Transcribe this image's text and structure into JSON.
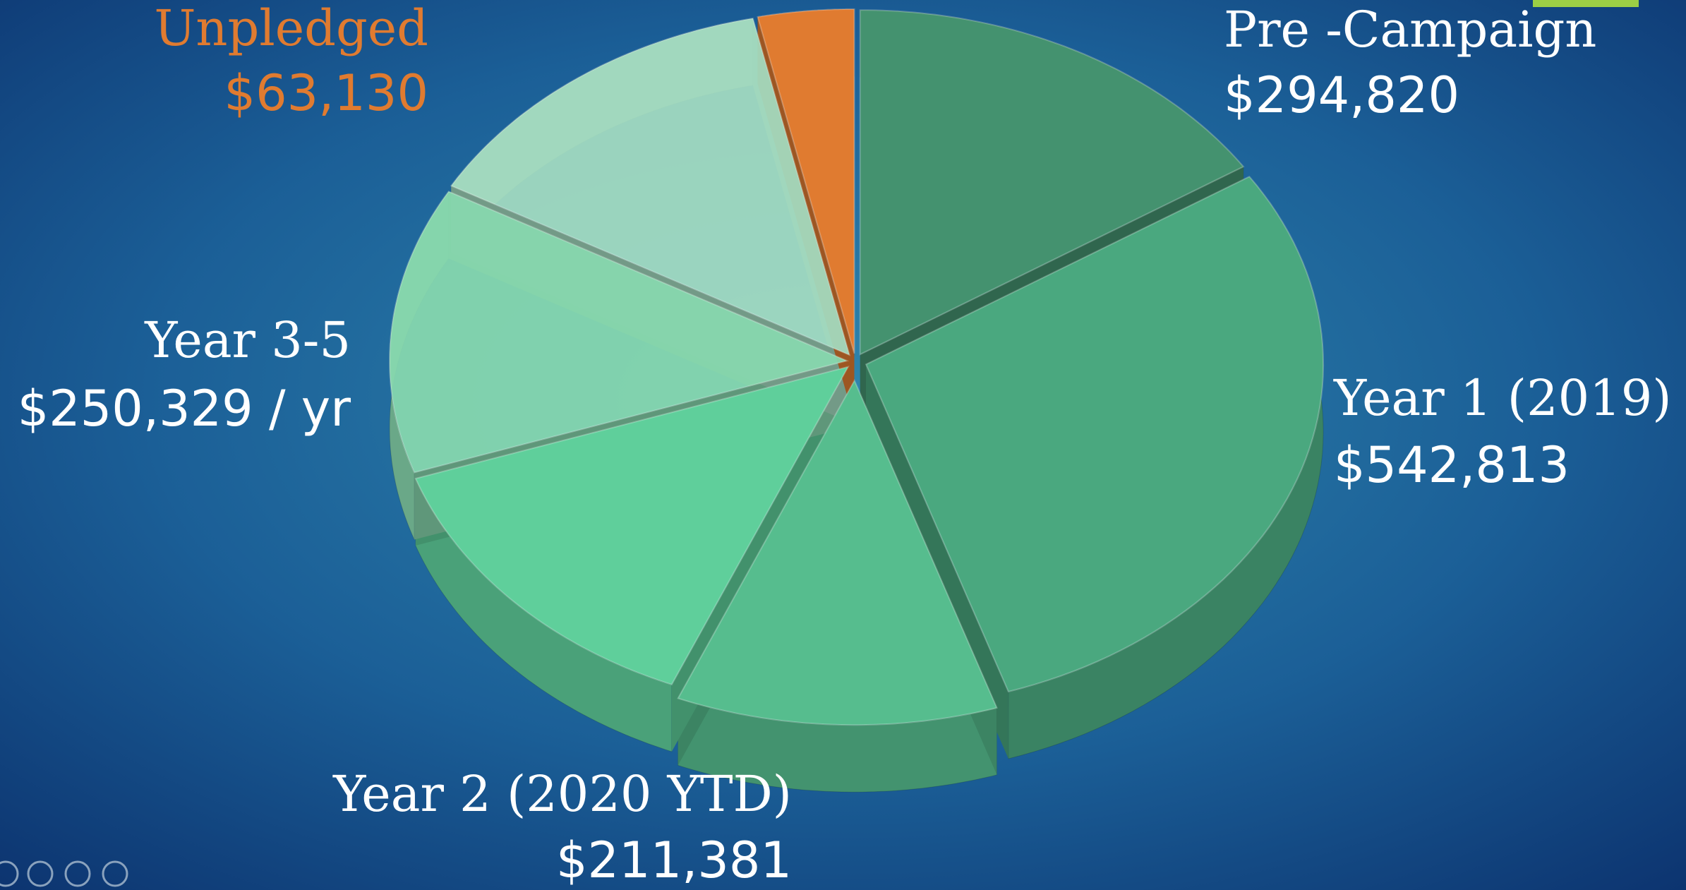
{
  "chart_data": {
    "type": "pie3d",
    "categories": [
      "Pre -Campaign",
      "Year 1 (2019)",
      "Year 2 (2020 YTD)",
      "Year 3-5",
      null,
      null,
      "Unpledged"
    ],
    "values": [
      294820,
      542813,
      211381,
      250329,
      250329,
      250329,
      63130
    ],
    "value_labels": [
      "$294,820",
      "$542,813",
      "$211,381",
      "$250,329 / yr",
      null,
      null,
      "$63,130"
    ],
    "colors": [
      "#44926f",
      "#4aa87f",
      "#56bd8e",
      "#5fcf9b",
      "#88d8ae",
      "#a4dcc1",
      "#e07b30"
    ]
  }
}
